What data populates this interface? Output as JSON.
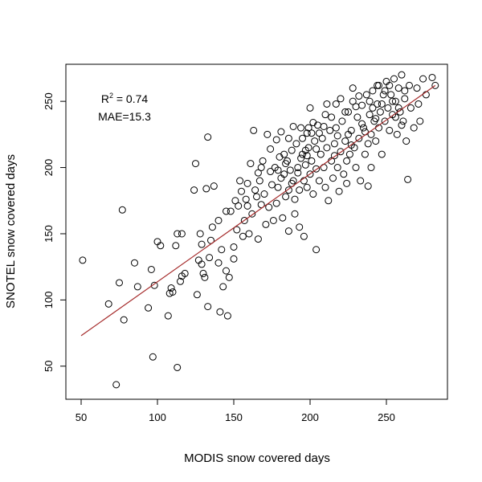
{
  "chart_data": {
    "type": "scatter",
    "title": "",
    "xlabel": "MODIS snow covered days",
    "ylabel": "SNOTEL snow covered days",
    "xlim": [
      40,
      290
    ],
    "ylim": [
      25,
      278
    ],
    "xticks": [
      50,
      100,
      150,
      200,
      250
    ],
    "yticks": [
      50,
      100,
      150,
      200,
      250
    ],
    "annotations": {
      "r2_symbol": "R",
      "r2_exp": "2",
      "r2_rest": " = 0.74",
      "mae": "MAE=15.3"
    },
    "fit_line": {
      "x": [
        50,
        282
      ],
      "y": [
        73,
        262
      ]
    },
    "colors": {
      "points": "#000000",
      "fit_line": "#a52a2a"
    },
    "points": [
      [
        51,
        130
      ],
      [
        68,
        97
      ],
      [
        73,
        36
      ],
      [
        75,
        113
      ],
      [
        77,
        168
      ],
      [
        78,
        85
      ],
      [
        85,
        128
      ],
      [
        87,
        110
      ],
      [
        94,
        94
      ],
      [
        96,
        123
      ],
      [
        97,
        57
      ],
      [
        98,
        111
      ],
      [
        100,
        144
      ],
      [
        102,
        141
      ],
      [
        107,
        88
      ],
      [
        108,
        105
      ],
      [
        109,
        109
      ],
      [
        110,
        106
      ],
      [
        112,
        141
      ],
      [
        113,
        49
      ],
      [
        113,
        150
      ],
      [
        115,
        114
      ],
      [
        116,
        118
      ],
      [
        116,
        150
      ],
      [
        118,
        120
      ],
      [
        124,
        183
      ],
      [
        125,
        203
      ],
      [
        126,
        104
      ],
      [
        127,
        130
      ],
      [
        129,
        142
      ],
      [
        128,
        150
      ],
      [
        129,
        127
      ],
      [
        130,
        120
      ],
      [
        131,
        117
      ],
      [
        132,
        184
      ],
      [
        133,
        95
      ],
      [
        133,
        223
      ],
      [
        134,
        132
      ],
      [
        135,
        145
      ],
      [
        137,
        186
      ],
      [
        136,
        155
      ],
      [
        140,
        160
      ],
      [
        142,
        138
      ],
      [
        141,
        91
      ],
      [
        143,
        110
      ],
      [
        145,
        167
      ],
      [
        146,
        88
      ],
      [
        147,
        117
      ],
      [
        148,
        167
      ],
      [
        150,
        140
      ],
      [
        151,
        175
      ],
      [
        152,
        153
      ],
      [
        153,
        171
      ],
      [
        154,
        190
      ],
      [
        155,
        182
      ],
      [
        157,
        160
      ],
      [
        158,
        176
      ],
      [
        159,
        188
      ],
      [
        160,
        150
      ],
      [
        161,
        203
      ],
      [
        162,
        165
      ],
      [
        163,
        228
      ],
      [
        164,
        183
      ],
      [
        165,
        178
      ],
      [
        166,
        146
      ],
      [
        167,
        190
      ],
      [
        168,
        172
      ],
      [
        168,
        200
      ],
      [
        170,
        180
      ],
      [
        171,
        157
      ],
      [
        172,
        225
      ],
      [
        173,
        170
      ],
      [
        174,
        197
      ],
      [
        175,
        187
      ],
      [
        176,
        160
      ],
      [
        177,
        200
      ],
      [
        178,
        173
      ],
      [
        179,
        185
      ],
      [
        180,
        208
      ],
      [
        181,
        192
      ],
      [
        181,
        227
      ],
      [
        182,
        162
      ],
      [
        183,
        195
      ],
      [
        184,
        178
      ],
      [
        185,
        205
      ],
      [
        186,
        183
      ],
      [
        186,
        152
      ],
      [
        187,
        198
      ],
      [
        188,
        213
      ],
      [
        189,
        190
      ],
      [
        190,
        165
      ],
      [
        190,
        176
      ],
      [
        191,
        218
      ],
      [
        192,
        200
      ],
      [
        193,
        183
      ],
      [
        193,
        155
      ],
      [
        194,
        230
      ],
      [
        195,
        210
      ],
      [
        196,
        190
      ],
      [
        196,
        148
      ],
      [
        197,
        202
      ],
      [
        198,
        226
      ],
      [
        198,
        185
      ],
      [
        199,
        215
      ],
      [
        200,
        195
      ],
      [
        200,
        245
      ],
      [
        201,
        205
      ],
      [
        202,
        180
      ],
      [
        203,
        220
      ],
      [
        204,
        199
      ],
      [
        204,
        138
      ],
      [
        205,
        232
      ],
      [
        206,
        190
      ],
      [
        207,
        210
      ],
      [
        208,
        222
      ],
      [
        209,
        200
      ],
      [
        210,
        185
      ],
      [
        210,
        240
      ],
      [
        211,
        215
      ],
      [
        212,
        175
      ],
      [
        213,
        228
      ],
      [
        214,
        205
      ],
      [
        215,
        192
      ],
      [
        216,
        218
      ],
      [
        217,
        248
      ],
      [
        217,
        230
      ],
      [
        218,
        200
      ],
      [
        219,
        182
      ],
      [
        220,
        212
      ],
      [
        221,
        235
      ],
      [
        222,
        195
      ],
      [
        223,
        220
      ],
      [
        224,
        205
      ],
      [
        224,
        188
      ],
      [
        225,
        242
      ],
      [
        226,
        210
      ],
      [
        227,
        228
      ],
      [
        228,
        250
      ],
      [
        228,
        260
      ],
      [
        229,
        215
      ],
      [
        230,
        200
      ],
      [
        231,
        238
      ],
      [
        232,
        222
      ],
      [
        233,
        190
      ],
      [
        234,
        247
      ],
      [
        235,
        230
      ],
      [
        236,
        210
      ],
      [
        237,
        255
      ],
      [
        238,
        218
      ],
      [
        238,
        186
      ],
      [
        239,
        240
      ],
      [
        240,
        225
      ],
      [
        240,
        200
      ],
      [
        241,
        258
      ],
      [
        242,
        235
      ],
      [
        243,
        220
      ],
      [
        244,
        248
      ],
      [
        244,
        262
      ],
      [
        245,
        230
      ],
      [
        246,
        242
      ],
      [
        247,
        210
      ],
      [
        248,
        255
      ],
      [
        249,
        235
      ],
      [
        250,
        265
      ],
      [
        251,
        245
      ],
      [
        252,
        228
      ],
      [
        253,
        255
      ],
      [
        254,
        240
      ],
      [
        255,
        267
      ],
      [
        256,
        250
      ],
      [
        257,
        225
      ],
      [
        258,
        260
      ],
      [
        259,
        242
      ],
      [
        260,
        270
      ],
      [
        261,
        235
      ],
      [
        262,
        252
      ],
      [
        263,
        220
      ],
      [
        264,
        191
      ],
      [
        265,
        262
      ],
      [
        266,
        245
      ],
      [
        268,
        230
      ],
      [
        270,
        260
      ],
      [
        271,
        248
      ],
      [
        272,
        235
      ],
      [
        274,
        267
      ],
      [
        276,
        255
      ],
      [
        280,
        268
      ],
      [
        282,
        262
      ],
      [
        140,
        128
      ],
      [
        145,
        122
      ],
      [
        150,
        131
      ],
      [
        156,
        148
      ],
      [
        159,
        171
      ],
      [
        166,
        196
      ],
      [
        169,
        205
      ],
      [
        174,
        214
      ],
      [
        178,
        221
      ],
      [
        183,
        210
      ],
      [
        186,
        222
      ],
      [
        189,
        231
      ],
      [
        192,
        196
      ],
      [
        194,
        207
      ],
      [
        197,
        213
      ],
      [
        199,
        230
      ],
      [
        202,
        234
      ],
      [
        204,
        214
      ],
      [
        206,
        226
      ],
      [
        209,
        231
      ],
      [
        211,
        248
      ],
      [
        214,
        238
      ],
      [
        216,
        209
      ],
      [
        218,
        224
      ],
      [
        220,
        252
      ],
      [
        223,
        242
      ],
      [
        225,
        225
      ],
      [
        227,
        217
      ],
      [
        230,
        246
      ],
      [
        232,
        254
      ],
      [
        234,
        233
      ],
      [
        236,
        227
      ],
      [
        239,
        250
      ],
      [
        241,
        245
      ],
      [
        243,
        237
      ],
      [
        245,
        262
      ],
      [
        247,
        248
      ],
      [
        249,
        258
      ],
      [
        252,
        262
      ],
      [
        254,
        250
      ],
      [
        256,
        238
      ],
      [
        258,
        245
      ],
      [
        260,
        232
      ],
      [
        262,
        258
      ],
      [
        195,
        222
      ],
      [
        198,
        209
      ],
      [
        201,
        226
      ],
      [
        188,
        188
      ],
      [
        184,
        203
      ],
      [
        179,
        198
      ]
    ]
  }
}
